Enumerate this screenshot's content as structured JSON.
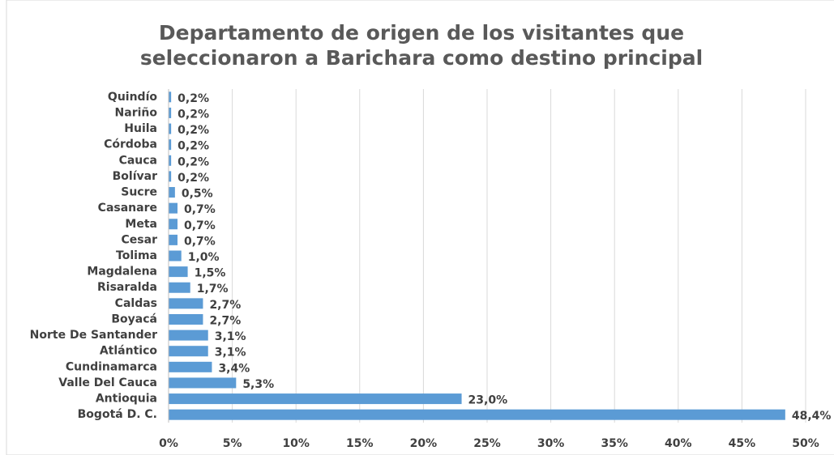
{
  "chart_data": {
    "type": "bar",
    "orientation": "horizontal",
    "title": [
      "Departamento de origen de los visitantes que",
      "seleccionaron a Barichara como destino principal"
    ],
    "categories": [
      "Quindío",
      "Nariño",
      "Huila",
      "Córdoba",
      "Cauca",
      "Bolívar",
      "Sucre",
      "Casanare",
      "Meta",
      "Cesar",
      "Tolima",
      "Magdalena",
      "Risaralda",
      "Caldas",
      "Boyacá",
      "Norte De Santander",
      "Atlántico",
      "Cundinamarca",
      "Valle Del Cauca",
      "Antioquia",
      "Bogotá D. C."
    ],
    "values": [
      0.2,
      0.2,
      0.2,
      0.2,
      0.2,
      0.2,
      0.5,
      0.7,
      0.7,
      0.7,
      1.0,
      1.5,
      1.7,
      2.7,
      2.7,
      3.1,
      3.1,
      3.4,
      5.3,
      23.0,
      48.4
    ],
    "value_labels": [
      "0,2%",
      "0,2%",
      "0,2%",
      "0,2%",
      "0,2%",
      "0,2%",
      "0,5%",
      "0,7%",
      "0,7%",
      "0,7%",
      "1,0%",
      "1,5%",
      "1,7%",
      "2,7%",
      "2,7%",
      "3,1%",
      "3,1%",
      "3,4%",
      "5,3%",
      "23,0%",
      "48,4%"
    ],
    "color": "#5b9bd5",
    "xlim": [
      0,
      50
    ],
    "xticks": [
      {
        "value": 0,
        "label": "0%"
      },
      {
        "value": 5,
        "label": "5%"
      },
      {
        "value": 10,
        "label": "10%"
      },
      {
        "value": 15,
        "label": "15%"
      },
      {
        "value": 20,
        "label": "20%"
      },
      {
        "value": 25,
        "label": "25%"
      },
      {
        "value": 30,
        "label": "30%"
      },
      {
        "value": 35,
        "label": "35%"
      },
      {
        "value": 40,
        "label": "40%"
      },
      {
        "value": 45,
        "label": "45%"
      },
      {
        "value": 50,
        "label": "50%"
      }
    ],
    "grid": true
  }
}
